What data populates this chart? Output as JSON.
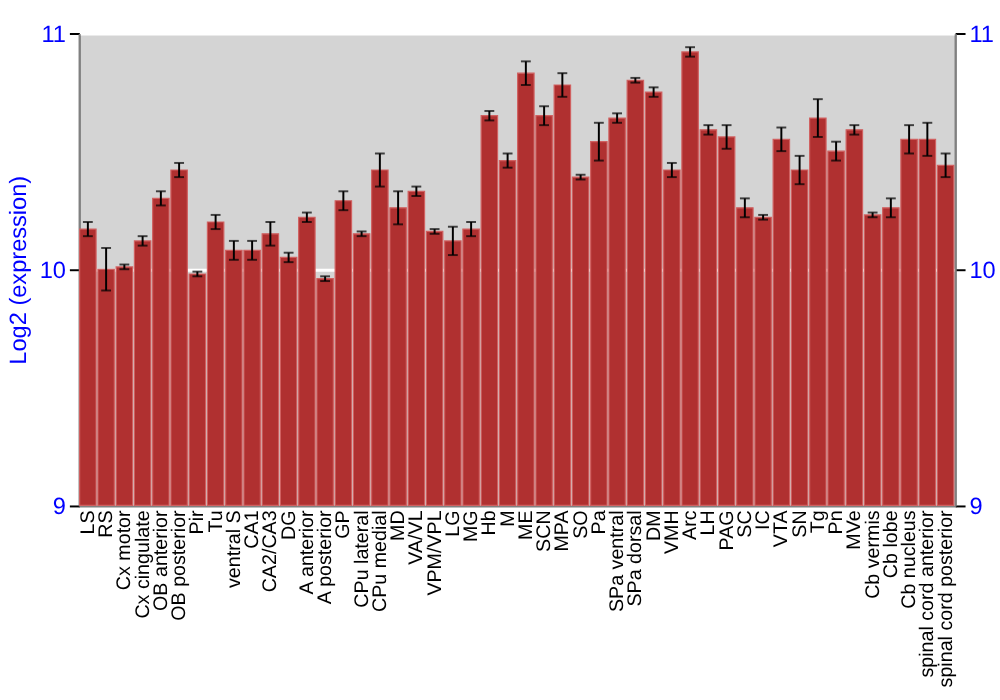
{
  "chart_data": {
    "type": "bar",
    "ylabel": "Log2 (expression)",
    "categories": [
      "LS",
      "RS",
      "Cx motor",
      "Cx cingulate",
      "OB anterior",
      "OB posterior",
      "Pir",
      "Tu",
      "ventral S",
      "CA1",
      "CA2/CA3",
      "DG",
      "A anterior",
      "A posterior",
      "GP",
      "CPu lateral",
      "CPu medial",
      "MD",
      "VA/VL",
      "VPM/VPL",
      "LG",
      "MG",
      "Hb",
      "M",
      "ME",
      "SCN",
      "MPA",
      "SO",
      "Pa",
      "SPa ventral",
      "SPa dorsal",
      "DM",
      "VMH",
      "Arc",
      "LH",
      "PAG",
      "SC",
      "IC",
      "VTA",
      "SN",
      "Tg",
      "Pn",
      "MVe",
      "Cb vermis",
      "Cb lobe",
      "Cb nucleus",
      "spinal cord anterior",
      "spinal cord posterior"
    ],
    "values": [
      10.17,
      10.0,
      10.01,
      10.12,
      10.3,
      10.42,
      9.98,
      10.2,
      10.08,
      10.08,
      10.15,
      10.05,
      10.22,
      9.96,
      10.29,
      10.15,
      10.42,
      10.26,
      10.33,
      10.16,
      10.12,
      10.17,
      10.65,
      10.46,
      10.83,
      10.65,
      10.78,
      10.39,
      10.54,
      10.64,
      10.8,
      10.75,
      10.42,
      10.92,
      10.59,
      10.56,
      10.26,
      10.22,
      10.55,
      10.42,
      10.64,
      10.5,
      10.59,
      10.23,
      10.26,
      10.55,
      10.55,
      10.44
    ],
    "errors": [
      0.03,
      0.09,
      0.01,
      0.02,
      0.03,
      0.03,
      0.01,
      0.03,
      0.04,
      0.04,
      0.05,
      0.02,
      0.02,
      0.01,
      0.04,
      0.01,
      0.07,
      0.07,
      0.02,
      0.01,
      0.06,
      0.03,
      0.02,
      0.03,
      0.05,
      0.04,
      0.05,
      0.01,
      0.08,
      0.02,
      0.01,
      0.02,
      0.03,
      0.02,
      0.02,
      0.05,
      0.04,
      0.01,
      0.05,
      0.06,
      0.08,
      0.04,
      0.02,
      0.01,
      0.04,
      0.06,
      0.07,
      0.05
    ],
    "color": "#b03030",
    "ylim": [
      9,
      11
    ],
    "yticks": [
      9,
      10,
      11
    ],
    "y2lim": [
      9,
      11
    ],
    "y2ticks": [
      9,
      10,
      11
    ],
    "grid": "y"
  }
}
